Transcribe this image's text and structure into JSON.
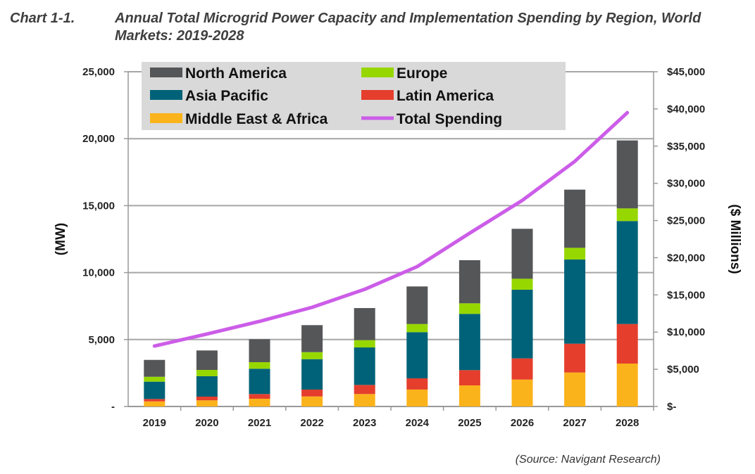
{
  "header": {
    "label": "Chart 1-1.",
    "title": "Annual Total Microgrid Power Capacity and Implementation Spending by Region, World Markets: 2019-2028"
  },
  "source": "(Source: Navigant Research)",
  "chart_data": {
    "type": "bar",
    "stacked": true,
    "title": "Annual Total Microgrid Power Capacity and Implementation Spending by Region, World Markets: 2019-2028",
    "categories": [
      "2019",
      "2020",
      "2021",
      "2022",
      "2023",
      "2024",
      "2025",
      "2026",
      "2027",
      "2028"
    ],
    "ylabel": "(MW)",
    "y2label": "($ Millions)",
    "ylim": [
      0,
      25000
    ],
    "y2lim": [
      0,
      45000
    ],
    "yticks": [
      "-",
      "5,000",
      "10,000",
      "15,000",
      "20,000",
      "25,000"
    ],
    "y2ticks": [
      "$-",
      "$5,000",
      "$10,000",
      "$15,000",
      "$20,000",
      "$25,000",
      "$30,000",
      "$35,000",
      "$40,000",
      "$45,000"
    ],
    "grid": true,
    "legend_position": "top-left",
    "series": [
      {
        "name": "Middle East & Africa",
        "color": "#fbb31b",
        "values": [
          380,
          460,
          580,
          750,
          930,
          1265,
          1575,
          2010,
          2540,
          3205
        ]
      },
      {
        "name": "Latin America",
        "color": "#e53e2c",
        "values": [
          180,
          275,
          350,
          510,
          680,
          835,
          1140,
          1580,
          2150,
          2955
        ]
      },
      {
        "name": "Asia Pacific",
        "color": "#006278",
        "values": [
          1295,
          1525,
          1890,
          2275,
          2800,
          3450,
          4200,
          5130,
          6285,
          7690
        ]
      },
      {
        "name": "Europe",
        "color": "#97d700",
        "values": [
          365,
          470,
          490,
          525,
          545,
          610,
          790,
          820,
          875,
          945
        ]
      },
      {
        "name": "North America",
        "color": "#555658",
        "values": [
          1260,
          1455,
          1715,
          2015,
          2395,
          2805,
          3220,
          3730,
          4345,
          5075
        ]
      }
    ],
    "line_series": {
      "name": "Total Spending",
      "color": "#cc5de8",
      "axis": "right",
      "values": [
        8130,
        9740,
        11440,
        13330,
        15750,
        18800,
        23300,
        27700,
        32950,
        39500
      ]
    },
    "legend": [
      "North America",
      "Europe",
      "Asia Pacific",
      "Latin America",
      "Middle East & Africa",
      "Total Spending"
    ]
  }
}
